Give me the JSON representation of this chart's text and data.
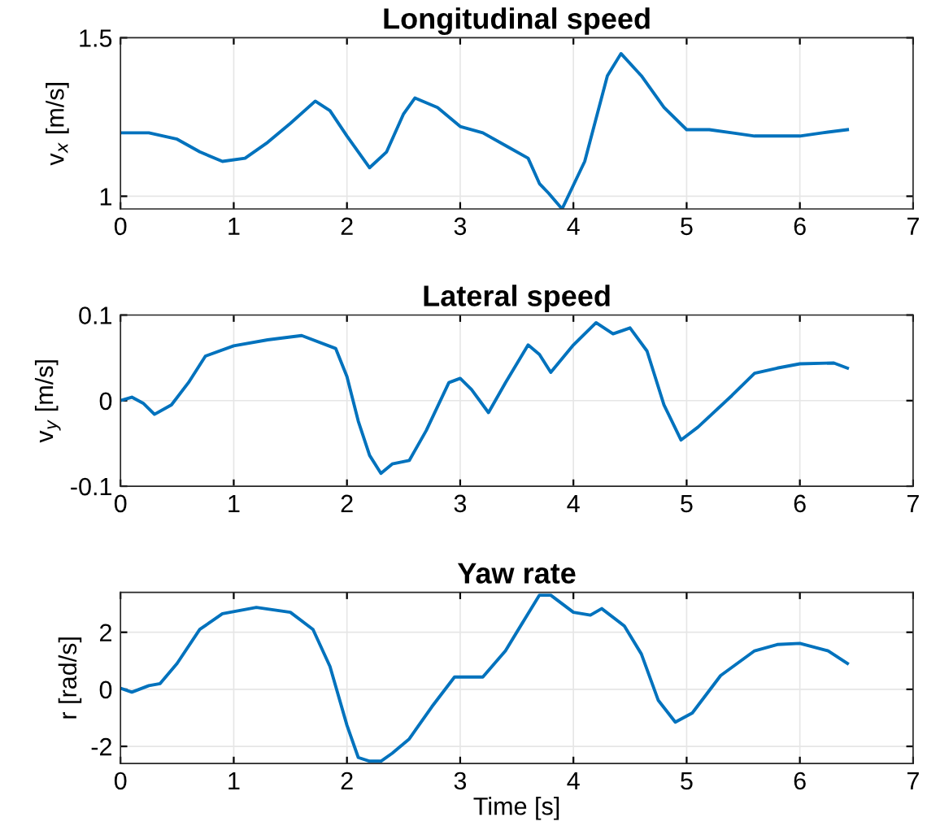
{
  "chart_data": [
    {
      "type": "line",
      "title": "Longitudinal speed",
      "ylabel": "v$_{x}$ [m/s]",
      "xlim": [
        0,
        7
      ],
      "xticks": [
        0,
        1,
        2,
        3,
        4,
        5,
        6,
        7
      ],
      "ylim": [
        0.96,
        1.5
      ],
      "yticks": [
        1,
        1.5
      ],
      "grid": true,
      "series": [
        {
          "color": "#0072bd",
          "x": [
            0,
            0.25,
            0.5,
            0.7,
            0.9,
            1.1,
            1.3,
            1.5,
            1.72,
            1.85,
            2.0,
            2.2,
            2.35,
            2.5,
            2.6,
            2.8,
            3.0,
            3.2,
            3.4,
            3.6,
            3.7,
            3.78,
            3.9,
            4.1,
            4.3,
            4.42,
            4.6,
            4.8,
            5.0,
            5.2,
            5.4,
            5.6,
            5.8,
            6.0,
            6.2,
            6.42
          ],
          "values": [
            1.2,
            1.2,
            1.18,
            1.14,
            1.11,
            1.12,
            1.17,
            1.23,
            1.3,
            1.27,
            1.19,
            1.09,
            1.14,
            1.26,
            1.31,
            1.28,
            1.22,
            1.2,
            1.16,
            1.12,
            1.04,
            1.01,
            0.96,
            1.11,
            1.38,
            1.45,
            1.38,
            1.28,
            1.21,
            1.21,
            1.2,
            1.19,
            1.19,
            1.19,
            1.2,
            1.21
          ]
        }
      ]
    },
    {
      "type": "line",
      "title": "Lateral speed",
      "ylabel": "v$_{y}$ [m/s]",
      "xlim": [
        0,
        7
      ],
      "xticks": [
        0,
        1,
        2,
        3,
        4,
        5,
        6,
        7
      ],
      "ylim": [
        -0.1,
        0.1
      ],
      "yticks": [
        -0.1,
        0,
        0.1
      ],
      "grid": true,
      "series": [
        {
          "color": "#0072bd",
          "x": [
            0,
            0.1,
            0.2,
            0.3,
            0.45,
            0.6,
            0.75,
            1.0,
            1.3,
            1.6,
            1.9,
            2.0,
            2.1,
            2.2,
            2.3,
            2.4,
            2.55,
            2.7,
            2.9,
            3.0,
            3.1,
            3.25,
            3.4,
            3.6,
            3.7,
            3.8,
            4.0,
            4.2,
            4.35,
            4.5,
            4.65,
            4.8,
            4.95,
            5.1,
            5.4,
            5.6,
            5.8,
            6.0,
            6.3,
            6.42
          ],
          "values": [
            0,
            0.004,
            -0.003,
            -0.016,
            -0.005,
            0.021,
            0.052,
            0.064,
            0.071,
            0.076,
            0.061,
            0.028,
            -0.024,
            -0.064,
            -0.085,
            -0.074,
            -0.07,
            -0.035,
            0.021,
            0.026,
            0.013,
            -0.014,
            0.021,
            0.065,
            0.054,
            0.033,
            0.065,
            0.091,
            0.078,
            0.085,
            0.058,
            -0.005,
            -0.046,
            -0.031,
            0.006,
            0.032,
            0.038,
            0.043,
            0.044,
            0.038
          ]
        }
      ]
    },
    {
      "type": "line",
      "title": "Yaw rate",
      "xlabel": "Time [s]",
      "ylabel": "r [rad/s]",
      "xlim": [
        0,
        7
      ],
      "xticks": [
        0,
        1,
        2,
        3,
        4,
        5,
        6,
        7
      ],
      "ylim": [
        -2.6,
        3.4
      ],
      "yticks": [
        -2,
        0,
        2
      ],
      "grid": true,
      "series": [
        {
          "color": "#0072bd",
          "x": [
            0,
            0.1,
            0.25,
            0.35,
            0.5,
            0.7,
            0.9,
            1.2,
            1.5,
            1.7,
            1.85,
            2.0,
            2.1,
            2.2,
            2.3,
            2.4,
            2.55,
            2.75,
            2.95,
            3.2,
            3.4,
            3.55,
            3.7,
            3.8,
            4.0,
            4.15,
            4.25,
            4.45,
            4.6,
            4.75,
            4.9,
            5.05,
            5.3,
            5.6,
            5.8,
            6.0,
            6.25,
            6.42
          ],
          "values": [
            0.04,
            -0.1,
            0.13,
            0.2,
            0.91,
            2.1,
            2.65,
            2.87,
            2.7,
            2.1,
            0.8,
            -1.26,
            -2.39,
            -2.52,
            -2.52,
            -2.24,
            -1.74,
            -0.61,
            0.43,
            0.43,
            1.35,
            2.33,
            3.3,
            3.3,
            2.7,
            2.6,
            2.83,
            2.22,
            1.24,
            -0.39,
            -1.15,
            -0.83,
            0.48,
            1.35,
            1.57,
            1.61,
            1.35,
            0.91
          ]
        }
      ]
    }
  ]
}
